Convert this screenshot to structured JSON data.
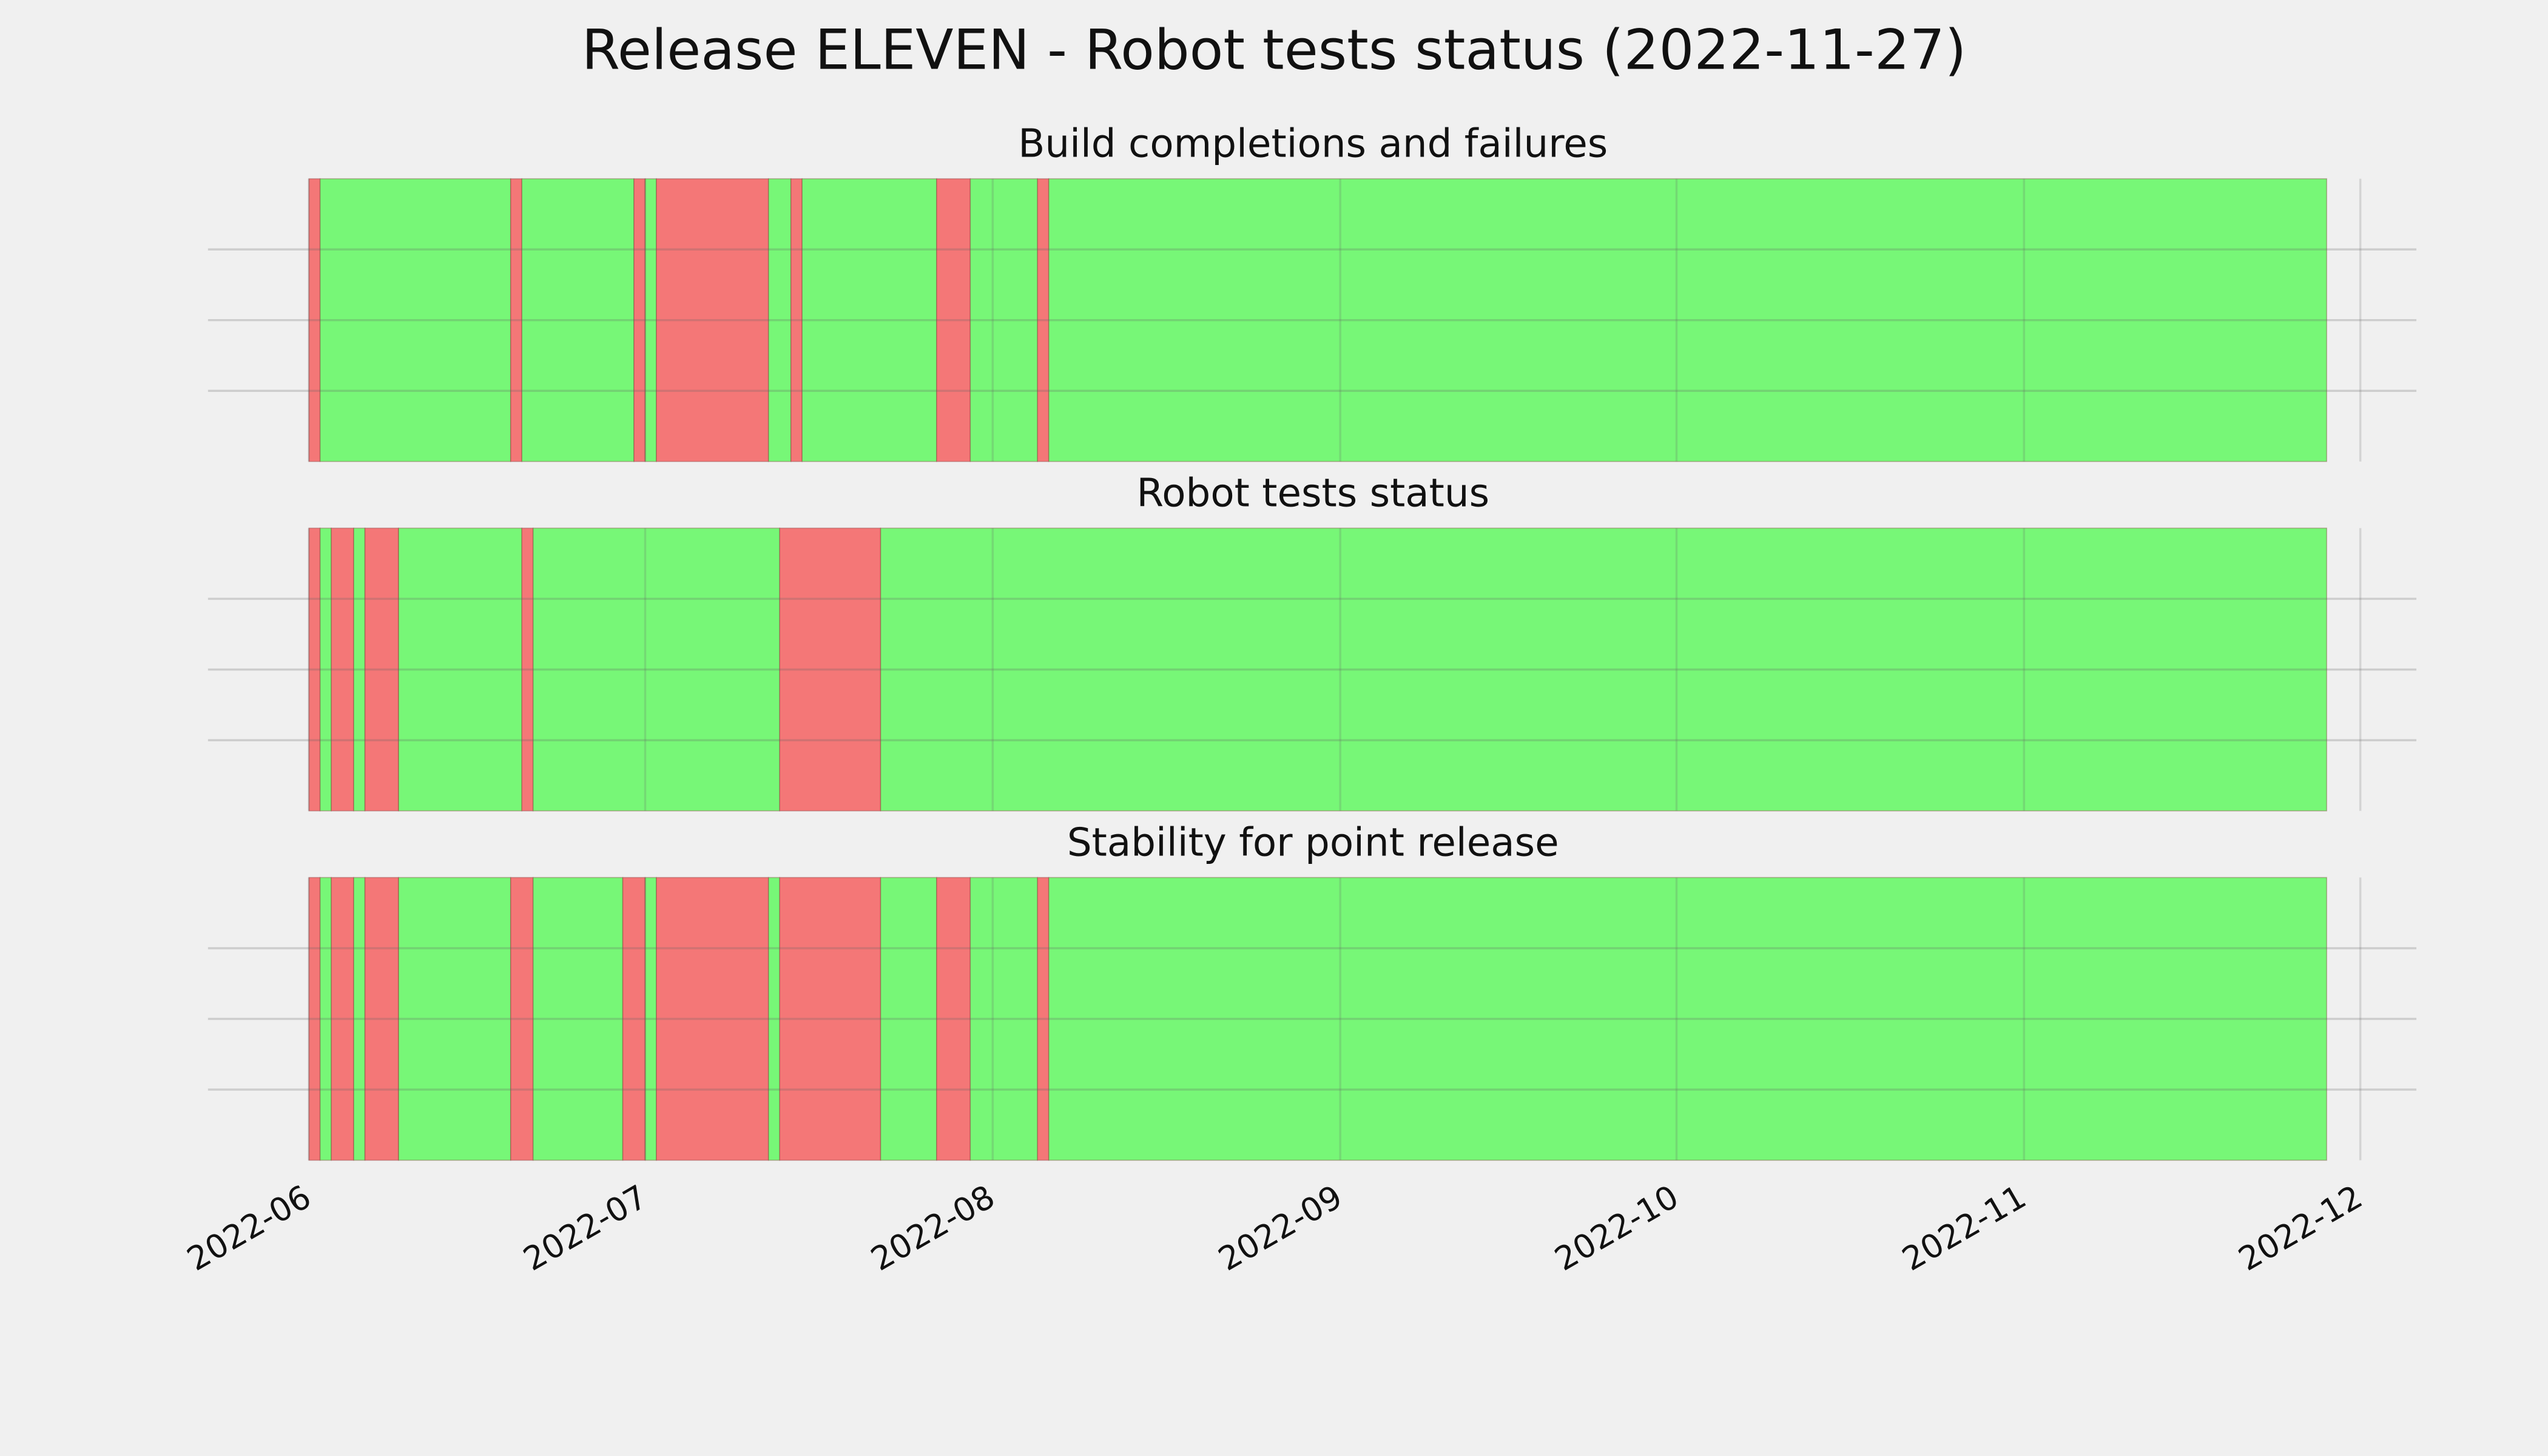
{
  "title": "Release ELEVEN - Robot tests status (2022-11-27)",
  "chart_data": [
    {
      "type": "timeline",
      "title": "Build completions and failures",
      "xlim": [
        "2022-05-23",
        "2022-12-06"
      ],
      "ylim": [
        0,
        1
      ],
      "yticks": [
        0.25,
        0.5,
        0.75
      ],
      "grid": true,
      "spans": [
        {
          "start": "2022-06-01",
          "end": "2022-06-02",
          "color": "#f47777"
        },
        {
          "start": "2022-06-02",
          "end": "2022-06-19",
          "color": "#77f777"
        },
        {
          "start": "2022-06-19",
          "end": "2022-06-20",
          "color": "#f47777"
        },
        {
          "start": "2022-06-20",
          "end": "2022-06-30",
          "color": "#77f777"
        },
        {
          "start": "2022-06-30",
          "end": "2022-07-01",
          "color": "#f47777"
        },
        {
          "start": "2022-07-01",
          "end": "2022-07-02",
          "color": "#77f777"
        },
        {
          "start": "2022-07-02",
          "end": "2022-07-12",
          "color": "#f47777"
        },
        {
          "start": "2022-07-12",
          "end": "2022-07-14",
          "color": "#77f777"
        },
        {
          "start": "2022-07-14",
          "end": "2022-07-15",
          "color": "#f47777"
        },
        {
          "start": "2022-07-15",
          "end": "2022-07-27",
          "color": "#77f777"
        },
        {
          "start": "2022-07-27",
          "end": "2022-07-30",
          "color": "#f47777"
        },
        {
          "start": "2022-07-30",
          "end": "2022-08-05",
          "color": "#77f777"
        },
        {
          "start": "2022-08-05",
          "end": "2022-08-06",
          "color": "#f47777"
        },
        {
          "start": "2022-08-06",
          "end": "2022-11-28",
          "color": "#77f777"
        }
      ]
    },
    {
      "type": "timeline",
      "title": "Robot tests status",
      "xlim": [
        "2022-05-23",
        "2022-12-06"
      ],
      "ylim": [
        0,
        1
      ],
      "yticks": [
        0.25,
        0.5,
        0.75
      ],
      "grid": true,
      "spans": [
        {
          "start": "2022-06-01",
          "end": "2022-06-02",
          "color": "#f47777"
        },
        {
          "start": "2022-06-02",
          "end": "2022-06-03",
          "color": "#77f777"
        },
        {
          "start": "2022-06-03",
          "end": "2022-06-05",
          "color": "#f47777"
        },
        {
          "start": "2022-06-05",
          "end": "2022-06-06",
          "color": "#77f777"
        },
        {
          "start": "2022-06-06",
          "end": "2022-06-09",
          "color": "#f47777"
        },
        {
          "start": "2022-06-09",
          "end": "2022-06-20",
          "color": "#77f777"
        },
        {
          "start": "2022-06-20",
          "end": "2022-06-21",
          "color": "#f47777"
        },
        {
          "start": "2022-06-21",
          "end": "2022-07-13",
          "color": "#77f777"
        },
        {
          "start": "2022-07-13",
          "end": "2022-07-22",
          "color": "#f47777"
        },
        {
          "start": "2022-07-22",
          "end": "2022-11-28",
          "color": "#77f777"
        }
      ]
    },
    {
      "type": "timeline",
      "title": "Stability for point release",
      "xlim": [
        "2022-05-23",
        "2022-12-06"
      ],
      "ylim": [
        0,
        1
      ],
      "yticks": [
        0.25,
        0.5,
        0.75
      ],
      "grid": true,
      "xticks": [
        "2022-06",
        "2022-07",
        "2022-08",
        "2022-09",
        "2022-10",
        "2022-11",
        "2022-12"
      ],
      "spans": [
        {
          "start": "2022-06-01",
          "end": "2022-06-02",
          "color": "#f47777"
        },
        {
          "start": "2022-06-02",
          "end": "2022-06-03",
          "color": "#77f777"
        },
        {
          "start": "2022-06-03",
          "end": "2022-06-05",
          "color": "#f47777"
        },
        {
          "start": "2022-06-05",
          "end": "2022-06-06",
          "color": "#77f777"
        },
        {
          "start": "2022-06-06",
          "end": "2022-06-09",
          "color": "#f47777"
        },
        {
          "start": "2022-06-09",
          "end": "2022-06-19",
          "color": "#77f777"
        },
        {
          "start": "2022-06-19",
          "end": "2022-06-21",
          "color": "#f47777"
        },
        {
          "start": "2022-06-21",
          "end": "2022-06-29",
          "color": "#77f777"
        },
        {
          "start": "2022-06-29",
          "end": "2022-07-01",
          "color": "#f47777"
        },
        {
          "start": "2022-07-01",
          "end": "2022-07-02",
          "color": "#77f777"
        },
        {
          "start": "2022-07-02",
          "end": "2022-07-12",
          "color": "#f47777"
        },
        {
          "start": "2022-07-12",
          "end": "2022-07-13",
          "color": "#77f777"
        },
        {
          "start": "2022-07-13",
          "end": "2022-07-22",
          "color": "#f47777"
        },
        {
          "start": "2022-07-22",
          "end": "2022-07-27",
          "color": "#77f777"
        },
        {
          "start": "2022-07-27",
          "end": "2022-07-30",
          "color": "#f47777"
        },
        {
          "start": "2022-07-30",
          "end": "2022-08-05",
          "color": "#77f777"
        },
        {
          "start": "2022-08-05",
          "end": "2022-08-06",
          "color": "#f47777"
        },
        {
          "start": "2022-08-06",
          "end": "2022-11-28",
          "color": "#77f777"
        }
      ]
    }
  ]
}
